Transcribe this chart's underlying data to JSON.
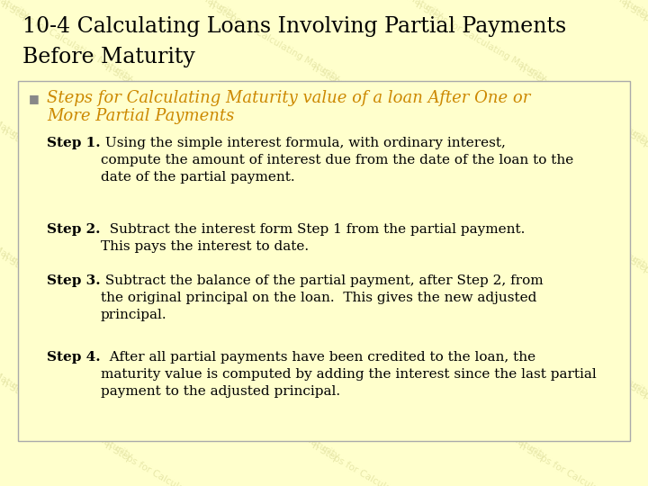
{
  "bg_color": "#FFFFCC",
  "title_line1": "10-4 Calculating Loans Involving Partial Payments",
  "title_line2": "Before Maturity",
  "title_color": "#000000",
  "title_fontsize": 17,
  "bullet_color": "#CC8800",
  "bullet_line1": "Steps for Calculating Maturity value of a loan After One or",
  "bullet_line2": "More Partial Payments",
  "bullet_fontsize": 13,
  "box_edge_color": "#aaaaaa",
  "body_color": "#000000",
  "body_fontsize": 11,
  "step1_label": "Step 1.",
  "step1_text": " Using the simple interest formula, with ordinary interest,\ncompute the amount of interest due from the date of the loan to the\ndate of the partial payment.",
  "step2_label": "Step 2.",
  "step2_text": "  Subtract the interest form Step 1 from the partial payment.\nThis pays the interest to date.",
  "step3_label": "Step 3.",
  "step3_text": " Subtract the balance of the partial payment, after Step 2, from\nthe original principal on the loan.  This gives the new adjusted\nprincipal.",
  "step4_label": "Step 4.",
  "step4_text": "  After all partial payments have been credited to the loan, the\nmaturity value is computed by adding the interest since the last partial\npayment to the adjusted principal.",
  "wm_text": "n Steps for Calculating Maturity",
  "wm_color": "#E8E8AA",
  "fig_width": 7.2,
  "fig_height": 5.4,
  "dpi": 100
}
